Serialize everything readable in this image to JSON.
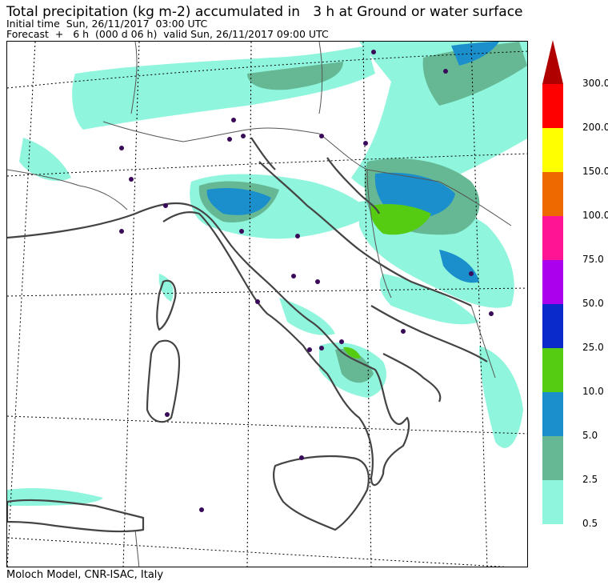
{
  "header": {
    "title": "Total precipitation (kg m-2) accumulated in   3 h at Ground or water surface",
    "initial_time": "Initial time  Sun, 26/11/2017  03:00 UTC",
    "forecast": "Forecast  +   6 h  (000 d 06 h)  valid Sun, 26/11/2017 09:00 UTC"
  },
  "footer": {
    "credit": "Moloch Model, CNR-ISAC, Italy"
  },
  "legend": {
    "levels": [
      {
        "label": "0.5",
        "color": "#8ff5dc"
      },
      {
        "label": "2.5",
        "color": "#66b894"
      },
      {
        "label": "5.0",
        "color": "#1a8fcc"
      },
      {
        "label": "10.0",
        "color": "#55cc11"
      },
      {
        "label": "25.0",
        "color": "#0a2acc"
      },
      {
        "label": "50.0",
        "color": "#aa00ee"
      },
      {
        "label": "75.0",
        "color": "#ff1493"
      },
      {
        "label": "100.0",
        "color": "#ee6a00"
      },
      {
        "label": "150.0",
        "color": "#ffff00"
      },
      {
        "label": "200.0",
        "color": "#ff0000"
      },
      {
        "label": "300.0",
        "color": "#b00000"
      }
    ]
  }
}
